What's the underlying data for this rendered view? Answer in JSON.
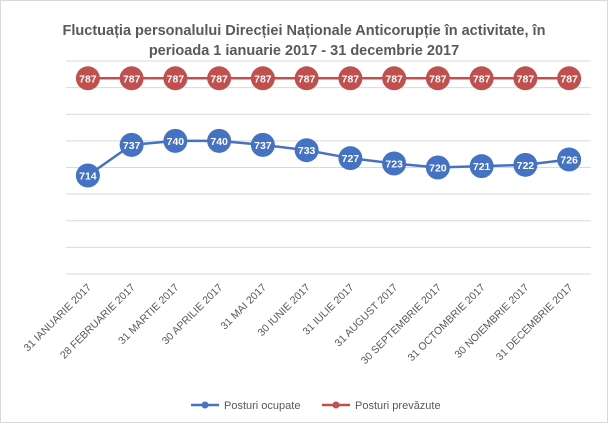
{
  "chart_data": {
    "type": "line",
    "title_lines": [
      "Fluctuația personalului Direcției Naționale Anticorupție în activitate, în",
      "perioada 1 ianuarie 2017 - 31 decembrie 2017"
    ],
    "categories": [
      "31 IANUARIE 2017",
      "28 FEBRUARIE 2017",
      "31 MARTIE 2017",
      "30 APRILIE 2017",
      "31 MAI 2017",
      "30 IUNIE 2017",
      "31 IULIE 2017",
      "31 AUGUST 2017",
      "30 SEPTEMBRIE 2017",
      "31 OCTOMBRIE 2017",
      "30 NOIEMBRIE 2017",
      "31 DECEMBRIE 2017"
    ],
    "series": [
      {
        "name": "Posturi ocupate",
        "color": "#4472c4",
        "values": [
          714,
          737,
          740,
          740,
          737,
          733,
          727,
          723,
          720,
          721,
          722,
          726
        ]
      },
      {
        "name": "Posturi prevăzute",
        "color": "#c0504d",
        "values": [
          787,
          787,
          787,
          787,
          787,
          787,
          787,
          787,
          787,
          787,
          787,
          787
        ]
      }
    ],
    "ylim": [
      640,
      800
    ],
    "y_gridlines": [
      640,
      660,
      680,
      700,
      720,
      740,
      760,
      780,
      800
    ],
    "y_tick_labels_shown": false,
    "grid": true,
    "data_labels": true,
    "legend_position": "bottom",
    "gridline_color": "#d9d9d9",
    "text_color": "#595959"
  }
}
